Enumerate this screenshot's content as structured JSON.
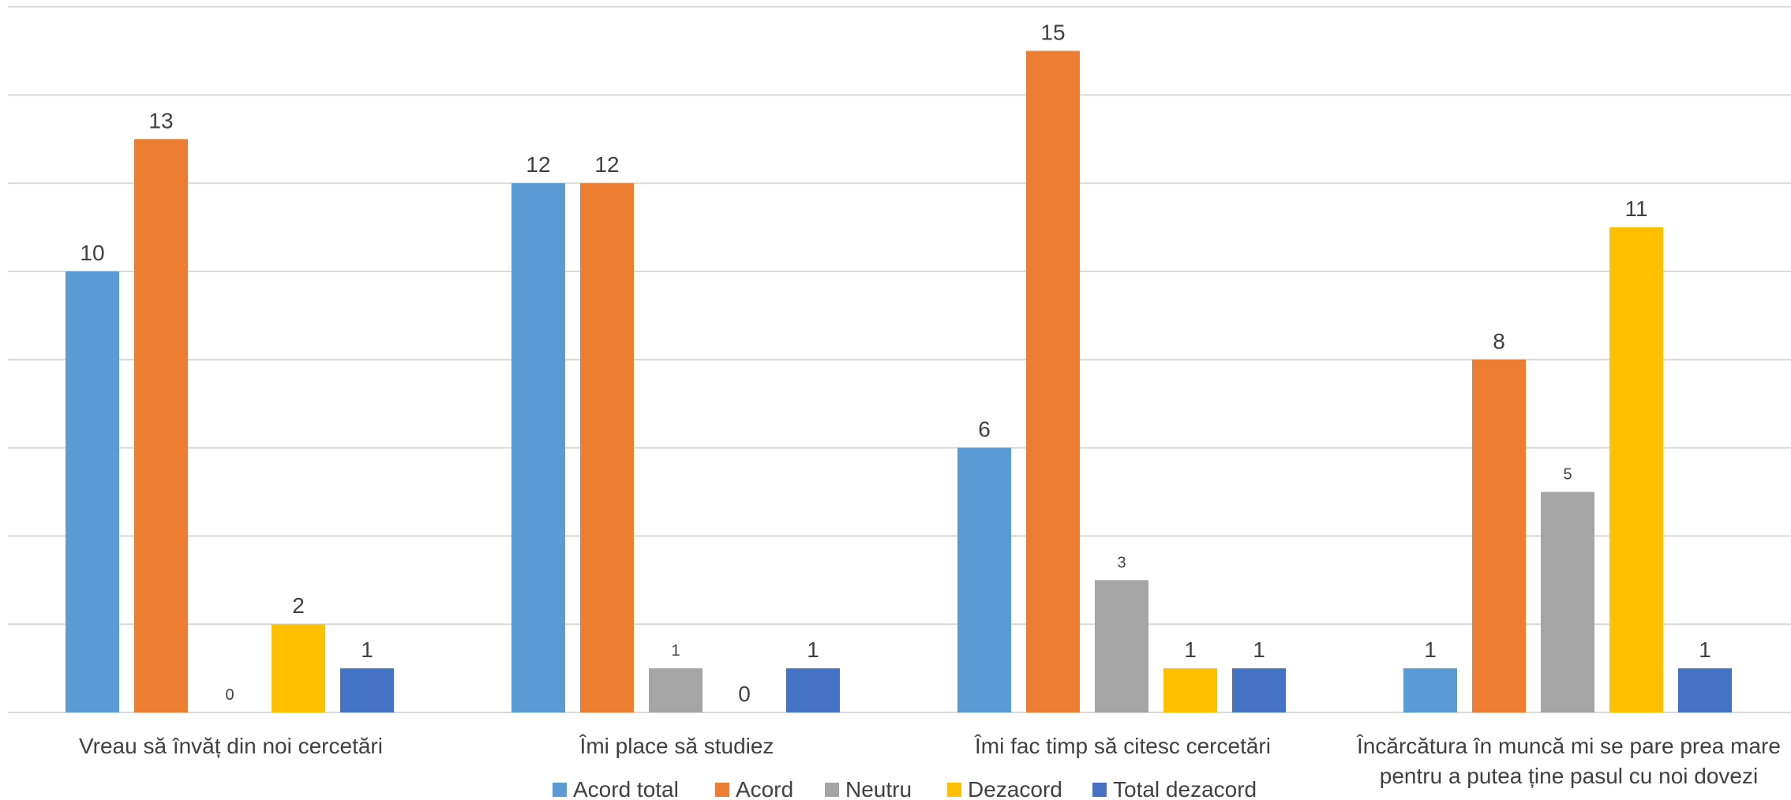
{
  "chart_data": {
    "type": "bar",
    "title": "",
    "xlabel": "",
    "ylabel": "",
    "ylim": [
      0,
      16
    ],
    "y_gridline_step": 2,
    "y_tick_labels_shown": false,
    "grid": true,
    "legend_position": "bottom",
    "categories": [
      [
        "Vreau să învăț din noi cercetări"
      ],
      [
        "Îmi place să studiez"
      ],
      [
        "Îmi fac timp să citesc cercetări"
      ],
      [
        "Încărcătura în muncă mi se pare prea mare",
        "pentru a putea ține pasul cu noi dovezi"
      ]
    ],
    "series": [
      {
        "name": "Acord total",
        "color": "#5B9BD5",
        "values": [
          10,
          12,
          6,
          1
        ]
      },
      {
        "name": "Acord",
        "color": "#ED7D31",
        "values": [
          13,
          12,
          15,
          8
        ]
      },
      {
        "name": "Neutru",
        "color": "#A5A5A5",
        "values": [
          0,
          1,
          3,
          5
        ]
      },
      {
        "name": "Dezacord",
        "color": "#FFC000",
        "values": [
          2,
          0,
          1,
          11
        ]
      },
      {
        "name": "Total dezacord",
        "color": "#4472C4",
        "values": [
          1,
          1,
          1,
          1
        ]
      }
    ]
  }
}
